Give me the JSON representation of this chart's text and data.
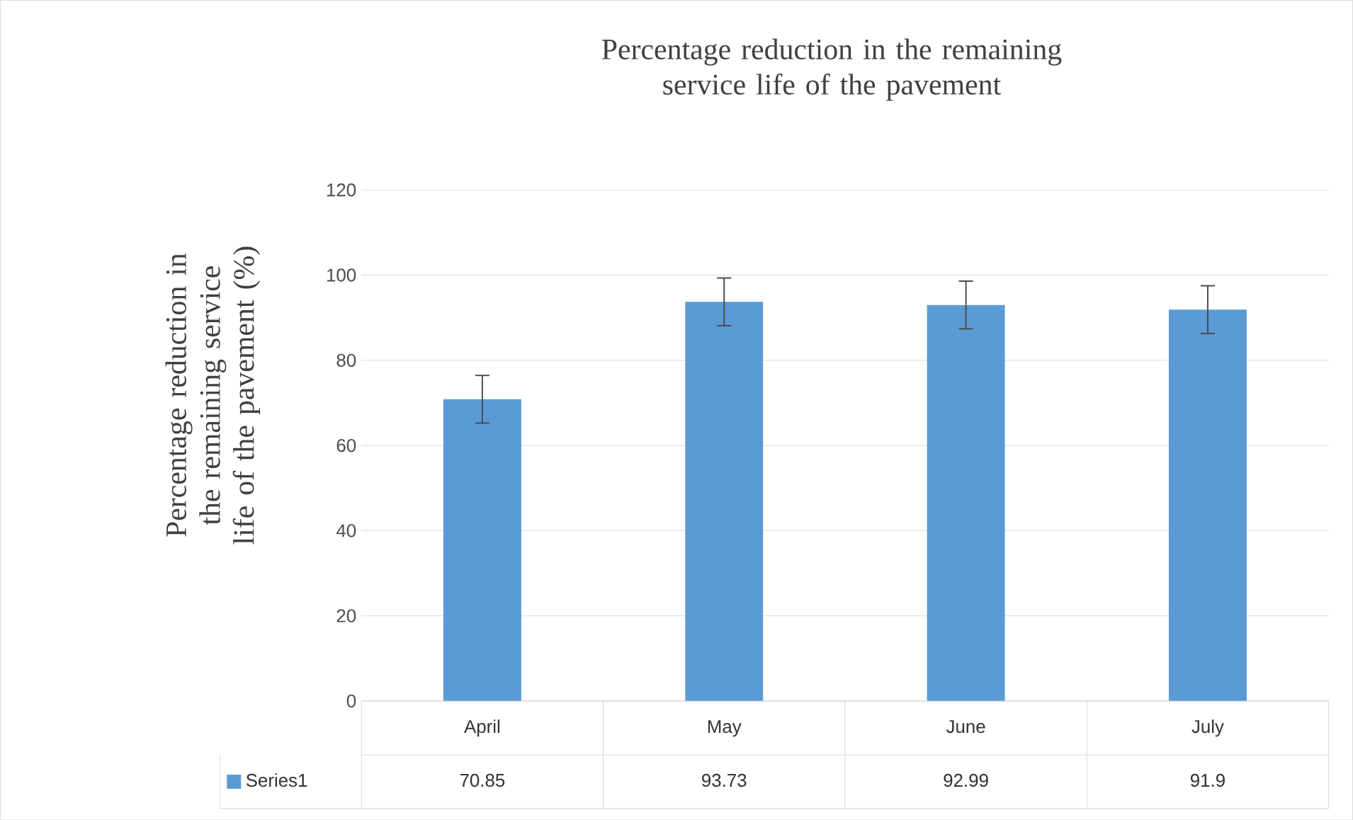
{
  "chart_data": {
    "type": "bar",
    "title": "Percentage reduction in the remaining service life of the pavement",
    "ylabel": "Percentage reduction in the remaining service life of the pavement (%)",
    "categories": [
      "April",
      "May",
      "June",
      "July"
    ],
    "series": [
      {
        "name": "Series1",
        "color": "#5b9bd5",
        "values": [
          70.85,
          93.73,
          92.99,
          91.9
        ],
        "errors": [
          5.6,
          5.6,
          5.6,
          5.6
        ]
      }
    ],
    "ylim": [
      0,
      120
    ],
    "yticks": [
      0,
      20,
      40,
      60,
      80,
      100,
      120
    ],
    "grid": "y",
    "data_labels": true,
    "legend": "bottom"
  }
}
